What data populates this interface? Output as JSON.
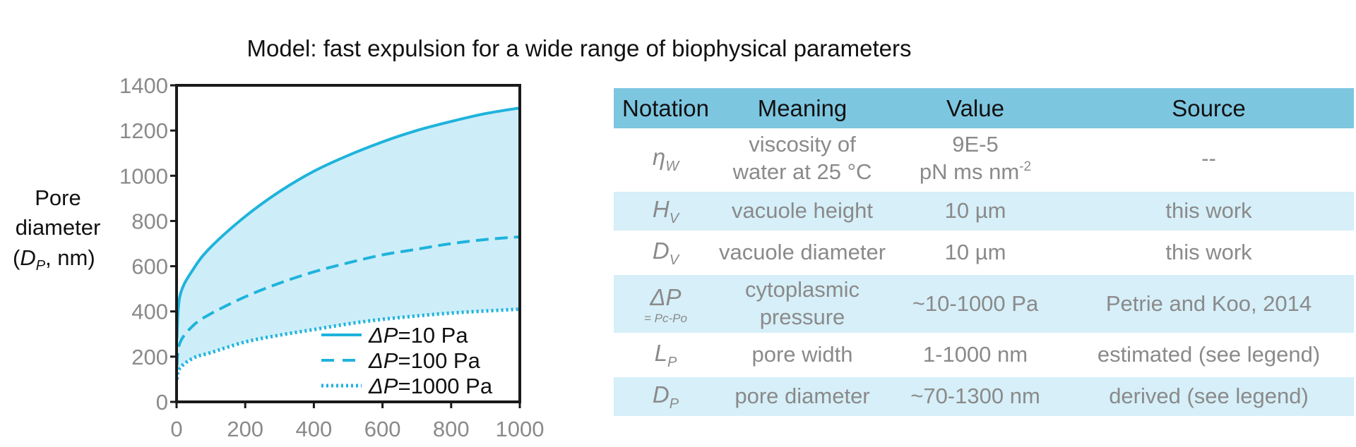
{
  "title": "Model: fast expulsion for a wide range of biophysical parameters",
  "chart_data": {
    "type": "line",
    "title": "Model: fast expulsion for a wide range of biophysical parameters",
    "ylabel_lines": [
      "Pore",
      "diameter",
      "(D",
      "P",
      ", nm)"
    ],
    "xlim": [
      0,
      1000
    ],
    "ylim": [
      0,
      1400
    ],
    "x_ticks": [
      0,
      200,
      400,
      600,
      800,
      1000
    ],
    "y_ticks": [
      0,
      200,
      400,
      600,
      800,
      1000,
      1200,
      1400
    ],
    "grid": false,
    "legend_position": "bottom-right",
    "shaded_region_between": [
      "ΔP=10 Pa",
      "ΔP=1000 Pa"
    ],
    "series": [
      {
        "name": "ΔP=10 Pa",
        "line_style": "solid",
        "color": "#1fb3dc",
        "x": [
          1,
          10,
          50,
          100,
          200,
          300,
          400,
          500,
          600,
          700,
          800,
          900,
          1000
        ],
        "y": [
          278,
          470,
          590,
          685,
          820,
          930,
          1020,
          1090,
          1150,
          1200,
          1240,
          1275,
          1300
        ]
      },
      {
        "name": "ΔP=100 Pa",
        "line_style": "dashed",
        "color": "#1fb3dc",
        "x": [
          1,
          10,
          50,
          100,
          200,
          300,
          400,
          500,
          600,
          700,
          800,
          900,
          1000
        ],
        "y": [
          160,
          262,
          340,
          390,
          465,
          525,
          575,
          615,
          650,
          675,
          700,
          718,
          730
        ]
      },
      {
        "name": "ΔP=1000 Pa",
        "line_style": "dotted",
        "color": "#1fb3dc",
        "x": [
          1,
          10,
          50,
          100,
          200,
          300,
          400,
          500,
          600,
          700,
          800,
          900,
          1000
        ],
        "y": [
          100,
          150,
          195,
          218,
          265,
          295,
          320,
          345,
          365,
          380,
          393,
          402,
          410
        ]
      }
    ]
  },
  "legend": [
    {
      "prefix": "ΔP",
      "suffix": "=10 Pa",
      "style": "solid"
    },
    {
      "prefix": "ΔP",
      "suffix": "=100 Pa",
      "style": "dashed"
    },
    {
      "prefix": "ΔP",
      "suffix": "=1000 Pa",
      "style": "dotted"
    }
  ],
  "table": {
    "headers": [
      "Notation",
      "Meaning",
      "Value",
      "Source"
    ],
    "rows": [
      {
        "sym": "η",
        "sub": "W",
        "note": "",
        "meaning_lines": [
          "viscosity of",
          "water at 25 °C"
        ],
        "value_lines": [
          "9E-5",
          "pN ms nm"
        ],
        "value_sup": "-2",
        "source": "--"
      },
      {
        "sym": "H",
        "sub": "V",
        "note": "",
        "meaning_lines": [
          "vacuole height"
        ],
        "value_lines": [
          "10 µm"
        ],
        "value_sup": "",
        "source": "this work"
      },
      {
        "sym": "D",
        "sub": "V",
        "note": "",
        "meaning_lines": [
          "vacuole diameter"
        ],
        "value_lines": [
          "10 µm"
        ],
        "value_sup": "",
        "source": "this work"
      },
      {
        "sym": "ΔP",
        "sub": "",
        "note": "= Pc-Po",
        "meaning_lines": [
          "cytoplasmic",
          "pressure"
        ],
        "value_lines": [
          "~10-1000 Pa"
        ],
        "value_sup": "",
        "source": "Petrie and Koo, 2014"
      },
      {
        "sym": "L",
        "sub": "P",
        "note": "",
        "meaning_lines": [
          "pore width"
        ],
        "value_lines": [
          "1-1000 nm"
        ],
        "value_sup": "",
        "source": "estimated (see legend)"
      },
      {
        "sym": "D",
        "sub": "P",
        "note": "",
        "meaning_lines": [
          "pore diameter"
        ],
        "value_lines": [
          "~70-1300 nm"
        ],
        "value_sup": "",
        "source": "derived (see legend)"
      }
    ]
  },
  "colors": {
    "series": "#1fb3dc",
    "fill": "#cdeef9",
    "header_bg": "#7dc6e0",
    "row_shade": "#d6eff8",
    "tick_text": "#8a8a8a"
  }
}
